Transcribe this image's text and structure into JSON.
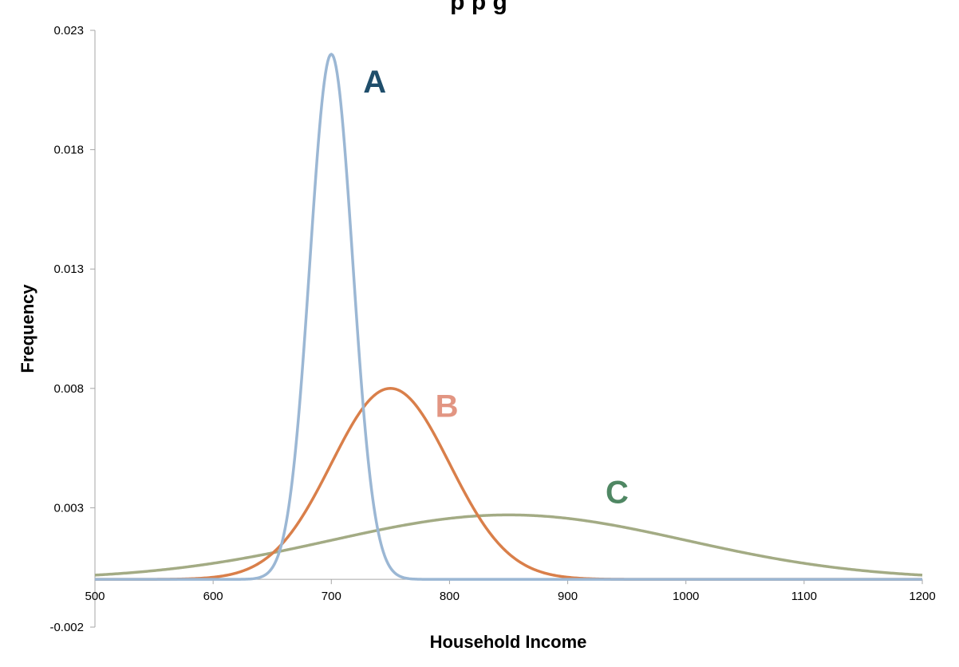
{
  "chart_data": {
    "type": "line",
    "title": "",
    "title_partial_visible": "p  p g",
    "xlabel": "Household Income",
    "ylabel": "Frequency",
    "xlim": [
      500,
      1200
    ],
    "ylim": [
      -0.002,
      0.023
    ],
    "x_ticks": [
      "500",
      "600",
      "700",
      "800",
      "900",
      "1000",
      "1100",
      "1200"
    ],
    "y_ticks": [
      "0.023",
      "0.018",
      "0.013",
      "0.008",
      "0.003",
      "-0.002"
    ],
    "x_tick_values": [
      500,
      600,
      700,
      800,
      900,
      1000,
      1100,
      1200
    ],
    "y_tick_values": [
      0.023,
      0.018,
      0.013,
      0.008,
      0.003,
      -0.002
    ],
    "grid": false,
    "legend": "none",
    "series": [
      {
        "name": "A",
        "color": "#9bb7d4",
        "label_color": "#1f4e6b",
        "mean": 700,
        "sd": 18.1,
        "peak": 0.022,
        "label_at": [
          727,
          0.0204
        ]
      },
      {
        "name": "B",
        "color": "#d97f4a",
        "label_color": "#e29582",
        "mean": 750,
        "sd": 50,
        "peak": 0.008,
        "label_at": [
          788,
          0.0068
        ]
      },
      {
        "name": "C",
        "color": "#a3ab84",
        "label_color": "#4f8763",
        "mean": 850,
        "sd": 150,
        "peak": 0.0027,
        "label_at": [
          932,
          0.0032
        ]
      }
    ]
  }
}
